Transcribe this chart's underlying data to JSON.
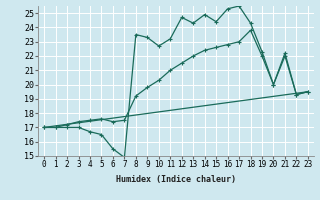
{
  "xlabel": "Humidex (Indice chaleur)",
  "bg_color": "#cfe8ef",
  "grid_color": "#ffffff",
  "line_color": "#1a6b5a",
  "xlim": [
    -0.5,
    23.5
  ],
  "ylim": [
    15,
    25.5
  ],
  "yticks": [
    15,
    16,
    17,
    18,
    19,
    20,
    21,
    22,
    23,
    24,
    25
  ],
  "xticks": [
    0,
    1,
    2,
    3,
    4,
    5,
    6,
    7,
    8,
    9,
    10,
    11,
    12,
    13,
    14,
    15,
    16,
    17,
    18,
    19,
    20,
    21,
    22,
    23
  ],
  "series1": [
    [
      0,
      17
    ],
    [
      1,
      17
    ],
    [
      2,
      17
    ],
    [
      3,
      17
    ],
    [
      4,
      16.7
    ],
    [
      5,
      16.5
    ],
    [
      6,
      15.5
    ],
    [
      7,
      14.9
    ],
    [
      8,
      23.5
    ],
    [
      9,
      23.3
    ],
    [
      10,
      22.7
    ],
    [
      11,
      23.2
    ],
    [
      12,
      24.7
    ],
    [
      13,
      24.3
    ],
    [
      14,
      24.9
    ],
    [
      15,
      24.4
    ],
    [
      16,
      25.3
    ],
    [
      17,
      25.5
    ],
    [
      18,
      24.3
    ],
    [
      19,
      22.3
    ],
    [
      20,
      20.0
    ],
    [
      21,
      22.2
    ],
    [
      22,
      19.3
    ],
    [
      23,
      19.5
    ]
  ],
  "series2": [
    [
      0,
      17
    ],
    [
      1,
      17
    ],
    [
      2,
      17.2
    ],
    [
      3,
      17.4
    ],
    [
      4,
      17.5
    ],
    [
      5,
      17.6
    ],
    [
      6,
      17.4
    ],
    [
      7,
      17.5
    ],
    [
      8,
      19.2
    ],
    [
      9,
      19.8
    ],
    [
      10,
      20.3
    ],
    [
      11,
      21.0
    ],
    [
      12,
      21.5
    ],
    [
      13,
      22.0
    ],
    [
      14,
      22.4
    ],
    [
      15,
      22.6
    ],
    [
      16,
      22.8
    ],
    [
      17,
      23.0
    ],
    [
      18,
      23.8
    ],
    [
      19,
      22.0
    ],
    [
      20,
      20.0
    ],
    [
      21,
      22.0
    ],
    [
      22,
      19.3
    ],
    [
      23,
      19.5
    ]
  ],
  "series3": [
    [
      0,
      17
    ],
    [
      23,
      19.5
    ]
  ]
}
